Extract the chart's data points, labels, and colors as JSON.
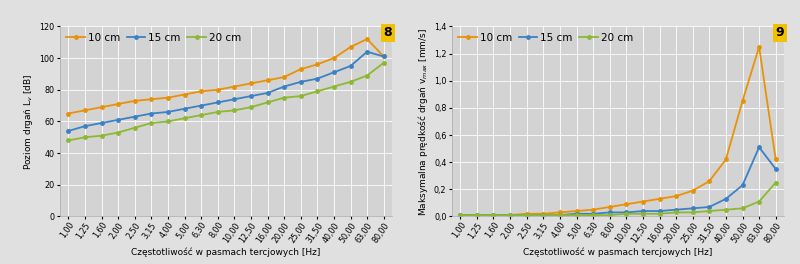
{
  "x_labels": [
    "1,00",
    "1,25",
    "1,60",
    "2,00",
    "2,50",
    "3,15",
    "4,00",
    "5,00",
    "6,30",
    "8,00",
    "10,00",
    "12,50",
    "16,00",
    "20,00",
    "25,00",
    "31,50",
    "40,00",
    "50,00",
    "63,00",
    "80,00"
  ],
  "x_vals": [
    1.0,
    1.25,
    1.6,
    2.0,
    2.5,
    3.15,
    4.0,
    5.0,
    6.3,
    8.0,
    10.0,
    12.5,
    16.0,
    20.0,
    25.0,
    31.5,
    40.0,
    50.0,
    63.0,
    80.0
  ],
  "chart8": {
    "title": "8",
    "ylabel": "Poziom drgań L ᵥ [dB]",
    "ylabel_plain": "Poziom drgań Lv [dB]",
    "xlabel": "Częstotliwość w pasmach tercjowych [Hz]",
    "ylim": [
      0,
      120
    ],
    "yticks": [
      0,
      20,
      40,
      60,
      80,
      100,
      120
    ],
    "series": {
      "10 cm": {
        "color": "#E8920A",
        "values": [
          65,
          67,
          69,
          71,
          73,
          74,
          75,
          77,
          79,
          80,
          82,
          84,
          86,
          88,
          93,
          96,
          100,
          107,
          112,
          101
        ]
      },
      "15 cm": {
        "color": "#3B82C4",
        "values": [
          54,
          57,
          59,
          61,
          63,
          65,
          66,
          68,
          70,
          72,
          74,
          76,
          78,
          82,
          85,
          87,
          91,
          95,
          104,
          101
        ]
      },
      "20 cm": {
        "color": "#8DB832",
        "values": [
          48,
          50,
          51,
          53,
          56,
          59,
          60,
          62,
          64,
          66,
          67,
          69,
          72,
          75,
          76,
          79,
          82,
          85,
          89,
          97
        ]
      }
    }
  },
  "chart9": {
    "title": "9",
    "ylabel_plain": "Maksymalna prędkość drgań vmax [mm/s]",
    "xlabel": "Częstotliwość w pasmach tercjowych [Hz]",
    "ylim": [
      0.0,
      1.4
    ],
    "yticks": [
      0.0,
      0.2,
      0.4,
      0.6,
      0.8,
      1.0,
      1.2,
      1.4
    ],
    "series": {
      "10 cm": {
        "color": "#E8920A",
        "values": [
          0.01,
          0.01,
          0.01,
          0.01,
          0.02,
          0.02,
          0.03,
          0.04,
          0.05,
          0.07,
          0.09,
          0.11,
          0.13,
          0.15,
          0.19,
          0.26,
          0.42,
          0.85,
          1.25,
          0.42
        ]
      },
      "15 cm": {
        "color": "#3B82C4",
        "values": [
          0.01,
          0.01,
          0.01,
          0.01,
          0.01,
          0.01,
          0.01,
          0.02,
          0.02,
          0.03,
          0.03,
          0.04,
          0.04,
          0.05,
          0.06,
          0.07,
          0.13,
          0.23,
          0.51,
          0.35
        ]
      },
      "20 cm": {
        "color": "#8DB832",
        "values": [
          0.01,
          0.01,
          0.01,
          0.01,
          0.01,
          0.01,
          0.01,
          0.01,
          0.01,
          0.01,
          0.02,
          0.02,
          0.02,
          0.03,
          0.03,
          0.04,
          0.05,
          0.06,
          0.11,
          0.25
        ]
      }
    }
  },
  "bg_color": "#E0E0E0",
  "panel_bg": "#D3D3D3",
  "legend_fontsize": 7.5,
  "axis_fontsize": 6.5,
  "tick_fontsize": 5.8,
  "marker": "o",
  "marker_size": 2.5,
  "line_width": 1.3,
  "tag_bg": "#F2C200",
  "tag_color": "#000000"
}
